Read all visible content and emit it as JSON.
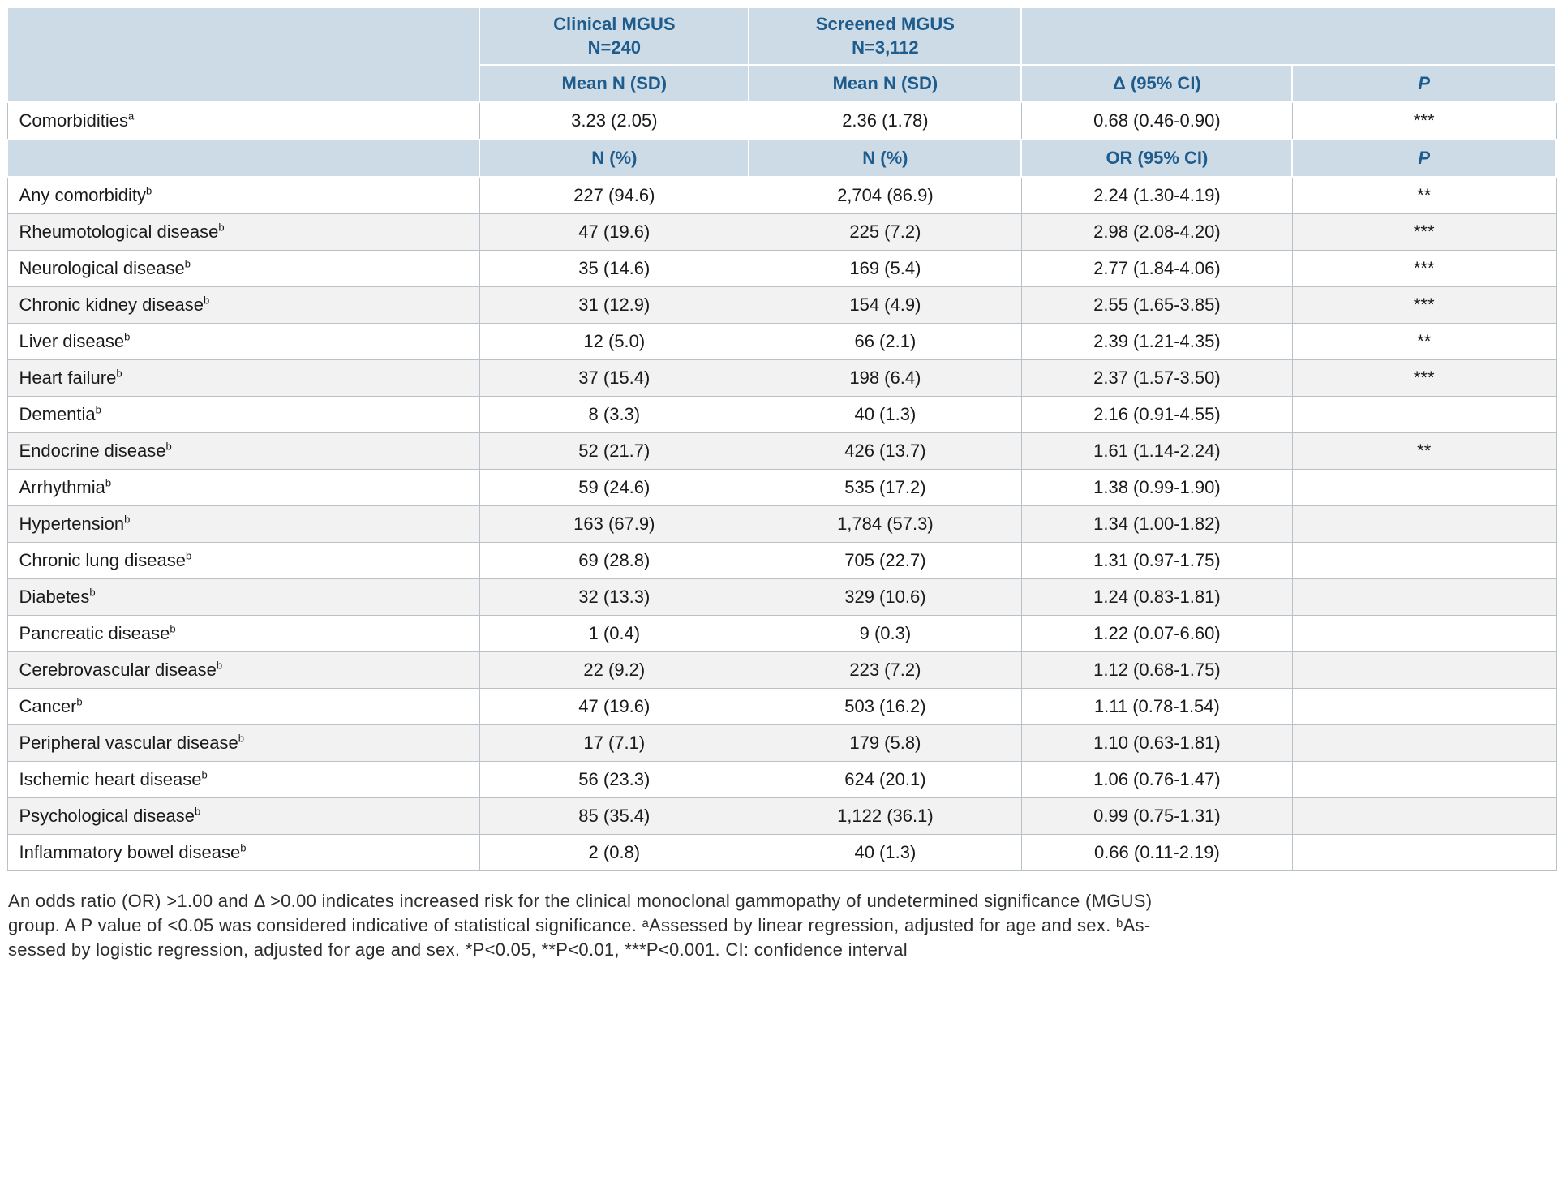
{
  "meta": {
    "colors": {
      "header_bg": "#cddbe7",
      "header_text": "#1d5c8c",
      "stripe_bg": "#f2f2f2",
      "border": "#b9c2c9",
      "body_text": "#1a1a1a"
    }
  },
  "table": {
    "group_headers": [
      {
        "line1": "Clinical MGUS",
        "line2": "N=240"
      },
      {
        "line1": "Screened MGUS",
        "line2": "N=3,112"
      }
    ],
    "mean_subheader": {
      "clinical": "Mean N (SD)",
      "screened": "Mean N (SD)",
      "effect": "Δ (95% CI)",
      "p": "P"
    },
    "comorbidities_row": {
      "label": "Comorbidities",
      "sup": "a",
      "clinical": "3.23 (2.05)",
      "screened": "2.36 (1.78)",
      "effect": "0.68 (0.46-0.90)",
      "p": "***"
    },
    "count_subheader": {
      "clinical": "N (%)",
      "screened": "N (%)",
      "effect": "OR (95% CI)",
      "p": "P"
    },
    "rows": [
      {
        "label": "Any comorbidity",
        "sup": "b",
        "clinical": "227 (94.6)",
        "screened": "2,704 (86.9)",
        "effect": "2.24 (1.30-4.19)",
        "p": "**"
      },
      {
        "label": "Rheumotological disease",
        "sup": "b",
        "clinical": "47 (19.6)",
        "screened": "225 (7.2)",
        "effect": "2.98 (2.08-4.20)",
        "p": "***"
      },
      {
        "label": "Neurological disease",
        "sup": "b",
        "clinical": "35 (14.6)",
        "screened": "169 (5.4)",
        "effect": "2.77 (1.84-4.06)",
        "p": "***"
      },
      {
        "label": "Chronic kidney disease",
        "sup": "b",
        "clinical": "31 (12.9)",
        "screened": "154 (4.9)",
        "effect": "2.55 (1.65-3.85)",
        "p": "***"
      },
      {
        "label": "Liver disease",
        "sup": "b",
        "clinical": "12 (5.0)",
        "screened": "66 (2.1)",
        "effect": "2.39 (1.21-4.35)",
        "p": "**"
      },
      {
        "label": "Heart failure",
        "sup": "b",
        "clinical": "37 (15.4)",
        "screened": "198 (6.4)",
        "effect": "2.37 (1.57-3.50)",
        "p": "***"
      },
      {
        "label": "Dementia",
        "sup": "b",
        "clinical": "8 (3.3)",
        "screened": "40 (1.3)",
        "effect": "2.16 (0.91-4.55)",
        "p": ""
      },
      {
        "label": "Endocrine disease",
        "sup": "b",
        "clinical": "52 (21.7)",
        "screened": "426 (13.7)",
        "effect": "1.61 (1.14-2.24)",
        "p": "**"
      },
      {
        "label": "Arrhythmia",
        "sup": "b",
        "clinical": "59 (24.6)",
        "screened": "535 (17.2)",
        "effect": "1.38 (0.99-1.90)",
        "p": ""
      },
      {
        "label": "Hypertension",
        "sup": "b",
        "clinical": "163 (67.9)",
        "screened": "1,784 (57.3)",
        "effect": "1.34 (1.00-1.82)",
        "p": ""
      },
      {
        "label": "Chronic lung disease",
        "sup": "b",
        "clinical": "69 (28.8)",
        "screened": "705 (22.7)",
        "effect": "1.31 (0.97-1.75)",
        "p": ""
      },
      {
        "label": "Diabetes",
        "sup": "b",
        "clinical": "32 (13.3)",
        "screened": "329 (10.6)",
        "effect": "1.24 (0.83-1.81)",
        "p": ""
      },
      {
        "label": "Pancreatic disease",
        "sup": "b",
        "clinical": "1 (0.4)",
        "screened": "9 (0.3)",
        "effect": "1.22 (0.07-6.60)",
        "p": ""
      },
      {
        "label": "Cerebrovascular disease",
        "sup": "b",
        "clinical": "22 (9.2)",
        "screened": "223 (7.2)",
        "effect": "1.12 (0.68-1.75)",
        "p": ""
      },
      {
        "label": "Cancer",
        "sup": "b",
        "clinical": "47 (19.6)",
        "screened": "503 (16.2)",
        "effect": "1.11 (0.78-1.54)",
        "p": ""
      },
      {
        "label": "Peripheral vascular disease",
        "sup": "b",
        "clinical": "17 (7.1)",
        "screened": "179 (5.8)",
        "effect": "1.10 (0.63-1.81)",
        "p": ""
      },
      {
        "label": "Ischemic heart disease",
        "sup": "b",
        "clinical": "56 (23.3)",
        "screened": "624 (20.1)",
        "effect": "1.06 (0.76-1.47)",
        "p": ""
      },
      {
        "label": "Psychological disease",
        "sup": "b",
        "clinical": "85 (35.4)",
        "screened": "1,122 (36.1)",
        "effect": "0.99 (0.75-1.31)",
        "p": ""
      },
      {
        "label": "Inflammatory bowel disease",
        "sup": "b",
        "clinical": "2 (0.8)",
        "screened": "40 (1.3)",
        "effect": "0.66 (0.11-2.19)",
        "p": ""
      }
    ]
  },
  "footnote": {
    "lines": [
      "An odds ratio (OR) >1.00 and Δ >0.00 indicates increased risk for the clinical monoclonal gammopathy of undetermined significance (MGUS)",
      "group. A P value of <0.05 was considered indicative of statistical significance. ᵃAssessed by linear regression, adjusted for age and sex. ᵇAs-",
      "sessed by logistic regression, adjusted for age and sex. *P<0.05, **P<0.01, ***P<0.001. CI: confidence interval"
    ]
  }
}
